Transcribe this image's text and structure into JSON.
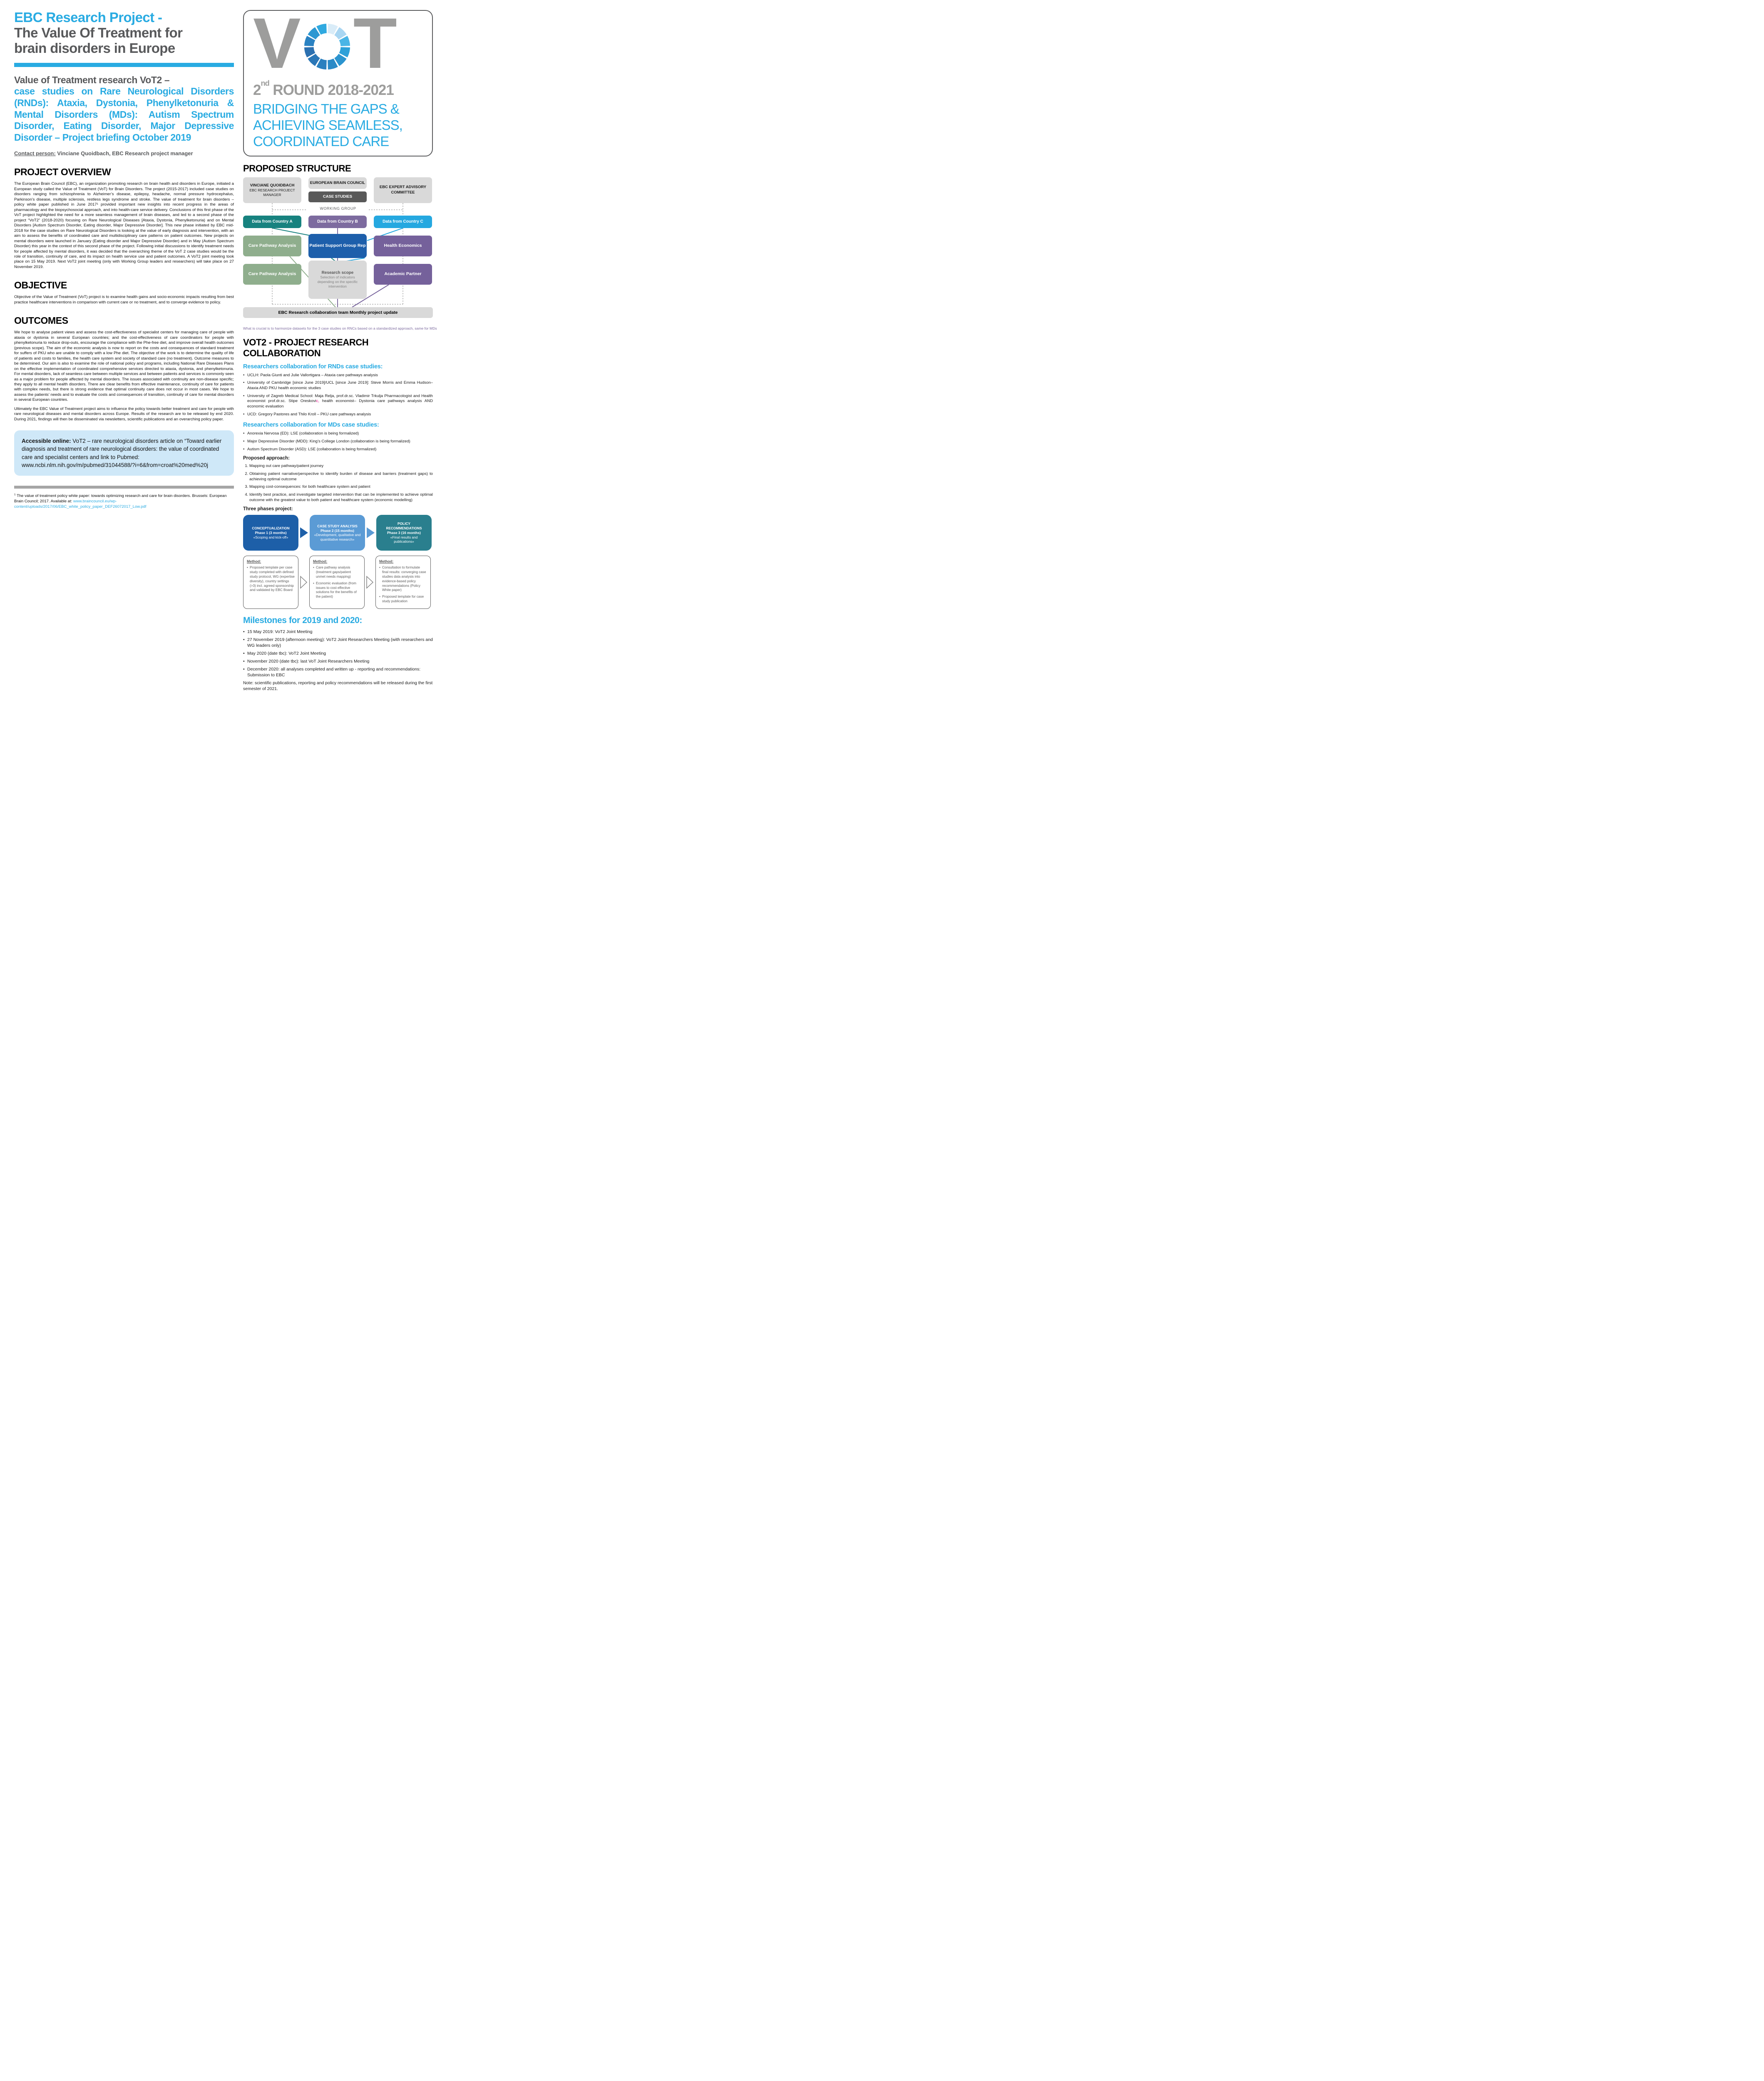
{
  "colors": {
    "accent_blue": "#29abe2",
    "title_gray": "#58595b",
    "logo_gray": "#9d9d9c",
    "teal": "#17827f",
    "purple": "#7d6b9f",
    "purple_dark": "#75619b",
    "cyan": "#25a8e0",
    "sage_green": "#8fae8d",
    "royal_blue": "#1d5fab",
    "phase1_blue": "#1d5fa8",
    "phase2_blue": "#5b9bd5",
    "phase3_teal": "#2a7f8e",
    "box_gray": "#d9d9d9",
    "case_dark_gray": "#595959",
    "accessible_bg": "#cfe8f8",
    "magenta": "#ec008c"
  },
  "left": {
    "title_blue": "EBC Research Project -",
    "title_gray": "The Value Of Treatment for brain disorders in Europe",
    "subtitle_gray": "Value of Treatment research VoT2 –",
    "subtitle_blue": "case studies on Rare Neurological Disorders (RNDs): Ataxia, Dystonia, Phenylketonuria & Mental Disorders (MDs): Autism Spectrum Disorder, Eating Disorder, Major Depressive Disorder – Project briefing October 2019",
    "contact_label": "Contact person:",
    "contact_rest": " Vinciane Quoidbach, EBC Research project manager",
    "overview_heading": "PROJECT OVERVIEW",
    "overview_body": "The European Brain Council (EBC), an organization promoting research on brain health and disorders in Europe, initiated a European study called the Value of Treatment (VoT) for Brain Disorders. The project (2015-2017) included case studies on disorders ranging from schizophrenia to Alzheimer’s disease, epilepsy, headache, normal pressure hydrocephalus, Parkinson’s disease, multiple sclerosis, restless legs syndrome and stroke. The value of treatment for brain disorders – policy white paper published in June 2017¹ provided important new insights into recent progress in the areas of pharmacology and the biopsychosocial approach, and into health-care service delivery. Conclusions of this first phase of the VoT project highlighted the need for a more seamless management of brain diseases, and led to a second phase of the project “VoT2” (2018-2020) focusing on Rare Neurological Diseases [Ataxia, Dystonia, Phenylketonuria) and on Mental Disorders [Autism Spectrum Disorder, Eating disorder, Major Depressive Disorder]. This new phase initiated by EBC mid-2018 for the case studies on Rare Neurological Disorders is looking at the value of early diagnosis and intervention, with an aim to assess the benefits of coordinated care and multidisciplinary care patterns on patient outcomes. New projects on mental disorders were launched in January (Eating disorder and Major Depressive Disorder) and in May (Autism Spectrum Disorder) this year in the context of this second phase of the project. Following initial discussions to identify treatment needs for people affected by mental disorders, it was decided that the overarching theme of the VoT 2 case studies would be the role of transition, continuity of care, and its impact on health service use and patient outcomes. A VoT2 joint meeting took place on 15 May 2019. Next VoT2 joint meeting (only with Working Group leaders and researchers) will take place on 27 November 2019.",
    "objective_heading": "OBJECTIVE",
    "objective_body": "Objective of the Value of Treatment (VoT) project is to examine health gains and socio-economic impacts resulting from best practice healthcare interventions in comparison with current care or no treatment, and to converge evidence to policy.",
    "outcomes_heading": "OUTCOMES",
    "outcomes_body1": "We hope to analyse patient views and assess the cost-effectiveness of specialist centers for managing care of people with ataxia or dystonia in several European countries; and the cost-effectiveness of care coordinators for people with phenylketonuria to reduce drop-outs, encourage the compliance with the Phe-free diet, and improve overall health outcomes (previous scope). The aim of the economic analysis is now to report on the costs and consequences of standard treatment for suffers of PKU who are unable to comply with a low Phe diet.  The objective of the work is to determine the quality of life of patients and costs to families, the health care system and society of standard care (no treatment). Outcome measures to be determined. Our aim is also to examine the role of national policy and programs, including National Rare Diseases Plans on the effective implementation of coordinated comprehensive services directed to ataxia, dystonia, and phenylketonuria. For mental disorders, lack of seamless care between multiple services and between patients and services is commonly seen as a major problem for people affected by mental disorders. The issues associated with continuity are non-disease specific; they apply to all mental health disorders. There are clear benefits from effective maintenance, continuity of care for patients with complex needs, but there is strong evidence that optimal continuity care does not occur in most cases. We hope to assess the patients’ needs and to evaluate the costs and consequences of transition, continuity of care for mental disorders in several European countries.",
    "outcomes_body2": "Ultimately the EBC Value of Treatment project aims to influence the policy towards better treatment and care for people with rare neurological diseases and mental disorders across Europe. Results of the research are to be released by end 2020. During 2021, findings will then be disseminated via newsletters, scientific publications and an overarching policy paper.",
    "accessible_label": "Accessible online:",
    "accessible_text": " VoT2 – rare neurological disorders article on “Toward earlier diagnosis and treatment of rare neurological disorders: the value of coordinated care and specialist centers and link to Pubmed: www.ncbi.nlm.nih.gov/m/pubmed/31044588/?i=6&from=croat%20med%20j",
    "footnote_sup": "1",
    "footnote_text": " The value of treatment policy white paper: towards optimizing research and care for brain disorders. Brussels: European Brain Council; 2017. Available at: ",
    "footnote_link": "www.braincouncil.eu/wp-content/uploads/2017/06/EBC_white_policy_paper_DEF26072017_Low.pdf"
  },
  "logo": {
    "letter_v": "V",
    "letter_t": "T",
    "round_num": "2",
    "round_sup": "nd",
    "round_rest": " ROUND 2018-2021",
    "tagline_line1": "BRIDGING THE GAPS &",
    "tagline_line2": "ACHIEVING SEAMLESS,",
    "tagline_line3": "COORDINATED CARE",
    "donut_colors": [
      "#d9ecf8",
      "#a9d6f2",
      "#4ab5e6",
      "#2da0d8",
      "#2b94cf",
      "#2a8ac7",
      "#2a80bf",
      "#2a77b7",
      "#2b70b0",
      "#2a82c2",
      "#2c97d2",
      "#2fa9e0"
    ]
  },
  "structure": {
    "heading": "PROPOSED STRUCTURE",
    "manager_name": "VINCIANE QUOIDBACH",
    "manager_role": "EBC RESEARCH PROJECT MANAGER",
    "ebc": "EUROPEAN BRAIN COUNCIL",
    "case_studies": "CASE STUDIES",
    "committee": "EBC EXPERT ADVISORY COMMITTEE",
    "working_group": "WORKING GROUP",
    "data_a": "Data from Country A",
    "data_b": "Data from Country B",
    "data_c": "Data from Country C",
    "care_1": "Care Pathway Analysis",
    "patient_support": "Patient Support Group Rep",
    "health_econ": "Health Economics",
    "care_2": "Care Pathway Analysis",
    "research_title": "Research scope",
    "research_body": "Selection of indicators depending on the specific intervention",
    "academic": "Academic Partner",
    "bar": "EBC Research collaboration team Monthly project update",
    "caption": "What is crucial is to harmonize datasets for the 3 case studies on RNCs based on a standardized approach, same for MDs"
  },
  "collab": {
    "heading": "VOT2 - PROJECT RESEARCH COLLABORATION",
    "rnd_heading": "Researchers collaboration for RNDs case studies:",
    "rnd_item1": "UCLH: Paola Giunti and Julie Vallortigara – Ataxia care pathways analysis",
    "rnd_item2": "University of Cambridge [since June 2019]/UCL [since June 2019]: Steve Morris and Emma Hudson– Ataxia AND PKU health economic studies",
    "rnd_item3_a": "University of Zagreb Medical School: Maja Relja, prof.dr.sc. Vladimir Trkulja Pharmacologist and Health economist prof.dr.sc. Stipe Oreskovi",
    "rnd_item3_c": "c,",
    "rnd_item3_b": " health economist– Dystonia care pathways analysis AND economic evaluation",
    "rnd_item4": "UCD: Gregory Pastores and Thilo Kroll – PKU care pathways analysis",
    "md_heading": "Researchers collaboration for MDs case studies:",
    "md_item1": "Anorexia Nervosa (ED): LSE (collaboration is being formalized)",
    "md_item2": "Major Depressive Disorder (MDD): King’s College London (collaboration is being formalized)",
    "md_item3": "Autism Spectrum Disorder (ASD): LSE (collaboration is being formalized)",
    "approach_heading": "Proposed approach:",
    "approach_1": "Mapping out care pathway/patient journey",
    "approach_2": "Obtaining patient narrative/perspective to identify burden of disease and barriers (treatment gaps) to achieving optimal outcome",
    "approach_3": "Mapping cost-consequences: for both healthcare system and patient",
    "approach_4": "Identify best practice, and investigate targeted intervention that can be implemented to achieve optimal outcome with the greatest value to both patient and healthcare system (economic modelling)"
  },
  "phases": {
    "heading": "Three phases project:",
    "p1_l1": "CONCEPTUALIZATION",
    "p1_l2": "Phase 1 (3 months)",
    "p1_l3": "«Scoping and kick-off»",
    "p2_l1": "CASE STUDY ANALYSIS",
    "p2_l2": "Phase 2 (15 months)",
    "p2_l3": "«Development, qualitative and quantitative research»",
    "p3_l1": "POLICY RECOMMENDATIONS",
    "p3_l2": "Phase 3 (16 months)",
    "p3_l3": "«Final results and publications»",
    "method_label": "Method:",
    "m1_b1": "Proposed template per case study completed with defined study protocol, WG (expertise diversity), country settings (>3) incl. agreed sponsorship and validated by EBC Board",
    "m2_b1": "Care pathway analysis (treatment gaps/patient unmet needs mapping)",
    "m2_b2": "Economic evaluation (from issues to cost effective solutions for the benefits of the patient)",
    "m3_b1": "Consultation to formulate final results: converging case studies data analysis into evidence-based policy recommendations (Policy White paper)",
    "m3_b2": "Proposed template for case study publication"
  },
  "milestones": {
    "heading": "Milestones for 2019 and 2020:",
    "item1": "15 May 2019: VoT2 Joint Meeting",
    "item2": " 27 November 2019 (afternoon meeting): VoT2 Joint Researchers Meeting (with researchers and WG leaders only)",
    "item3": "May 2020 (date tbc): VoT2 Joint Meeting",
    "item4": "November 2020 (date tbc): last VoT Joint Researchers Meeting",
    "item5": "December 2020: all analyses completed and written up - reporting and recommendations: Submission to EBC",
    "note": "Note: scientific publications, reporting and policy recommendations will be released during the first semester of 2021."
  }
}
